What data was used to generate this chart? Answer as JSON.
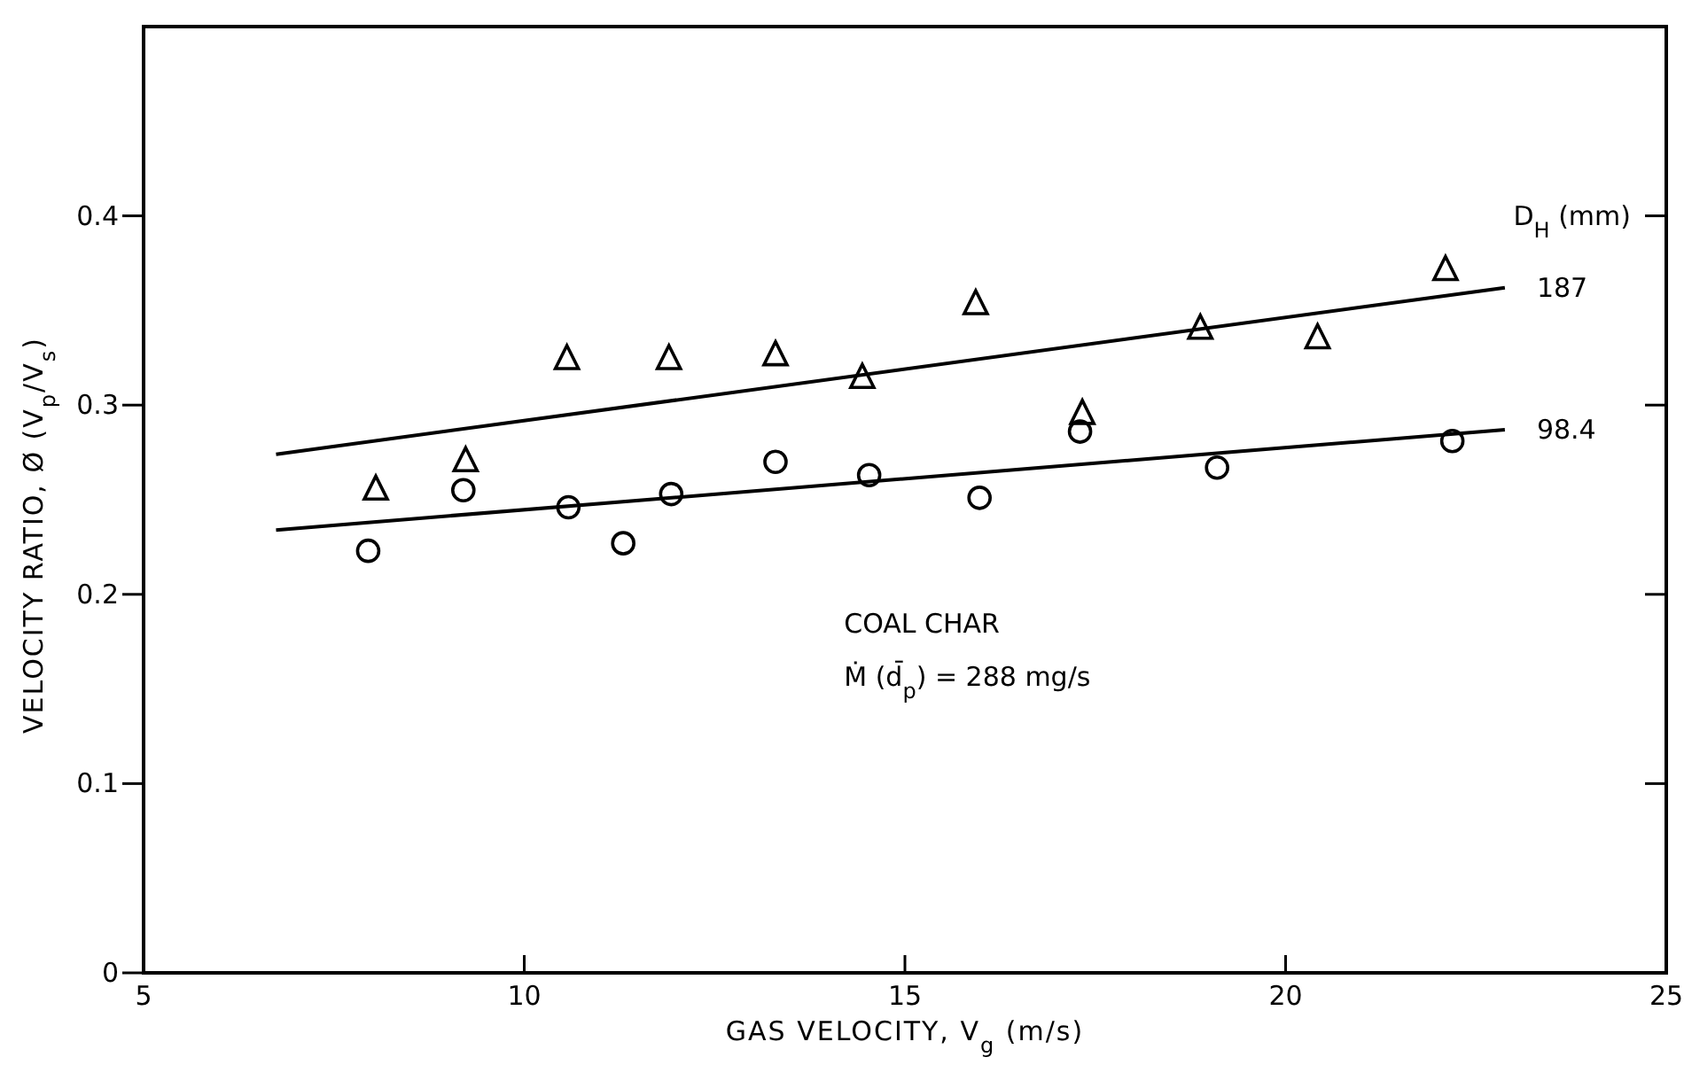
{
  "chart_data": {
    "type": "scatter",
    "xlabel": "GAS VELOCITY, V$_{g}$ (m/s)",
    "ylabel": "VELOCITY RATIO, Ø (V$_{p}$/V$_{s}$)",
    "legend_title": "D$_{H}$ (mm)",
    "annotations": [
      "COAL CHAR",
      "Ṁ (d̄$_{p}$) = 288 mg/s"
    ],
    "xlim": [
      5,
      25
    ],
    "xticks": [
      5,
      10,
      15,
      20,
      25
    ],
    "ylim": [
      0,
      0.5
    ],
    "yticks": [
      0,
      0.1,
      0.2,
      0.3,
      0.4
    ],
    "grid": false,
    "series": [
      {
        "marker": "triangle",
        "color": "#000000",
        "x": [
          8.05,
          9.23,
          10.56,
          11.9,
          13.3,
          14.44,
          15.93,
          17.33,
          18.88,
          20.42,
          22.1
        ],
        "values": [
          0.255,
          0.27,
          0.324,
          0.324,
          0.326,
          0.314,
          0.353,
          0.295,
          0.34,
          0.335,
          0.371
        ]
      },
      {
        "marker": "circle",
        "color": "#000000",
        "x": [
          7.95,
          9.2,
          10.58,
          11.3,
          11.93,
          13.3,
          14.53,
          15.98,
          17.3,
          19.1,
          22.19
        ],
        "values": [
          0.223,
          0.255,
          0.246,
          0.227,
          0.253,
          0.27,
          0.263,
          0.251,
          0.286,
          0.267,
          0.281
        ]
      },
      {
        "type": "line",
        "name": "187",
        "color": "#000000",
        "line_style": "solid",
        "x": [
          6.74,
          22.88
        ],
        "values": [
          0.274,
          0.362
        ]
      },
      {
        "type": "line",
        "name": "98.4",
        "color": "#000000",
        "line_style": "solid",
        "x": [
          6.74,
          22.88
        ],
        "values": [
          0.234,
          0.287
        ]
      }
    ]
  }
}
